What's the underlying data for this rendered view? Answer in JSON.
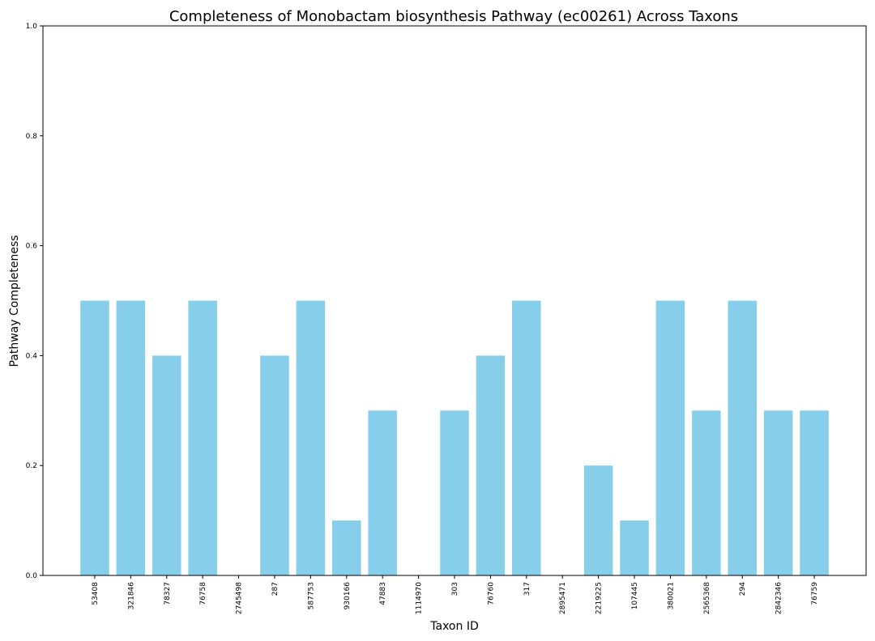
{
  "chart_data": {
    "type": "bar",
    "title": "Completeness of Monobactam biosynthesis Pathway (ec00261) Across Taxons",
    "xlabel": "Taxon ID",
    "ylabel": "Pathway Completeness",
    "ylim": [
      0,
      1
    ],
    "yticks": [
      "0.0",
      "0.2",
      "0.4",
      "0.6",
      "0.8",
      "1.0"
    ],
    "grid": false,
    "bar_color": "#87ceeb",
    "categories": [
      "53408",
      "321846",
      "78327",
      "76758",
      "2745498",
      "287",
      "587753",
      "930166",
      "47883",
      "1114970",
      "303",
      "76760",
      "317",
      "2895471",
      "2219225",
      "107445",
      "380021",
      "2565368",
      "294",
      "2842346",
      "76759"
    ],
    "values": [
      0.5,
      0.5,
      0.4,
      0.5,
      0.0,
      0.4,
      0.5,
      0.1,
      0.3,
      0.0,
      0.3,
      0.4,
      0.5,
      0.0,
      0.2,
      0.1,
      0.5,
      0.3,
      0.5,
      0.3,
      0.3
    ]
  }
}
